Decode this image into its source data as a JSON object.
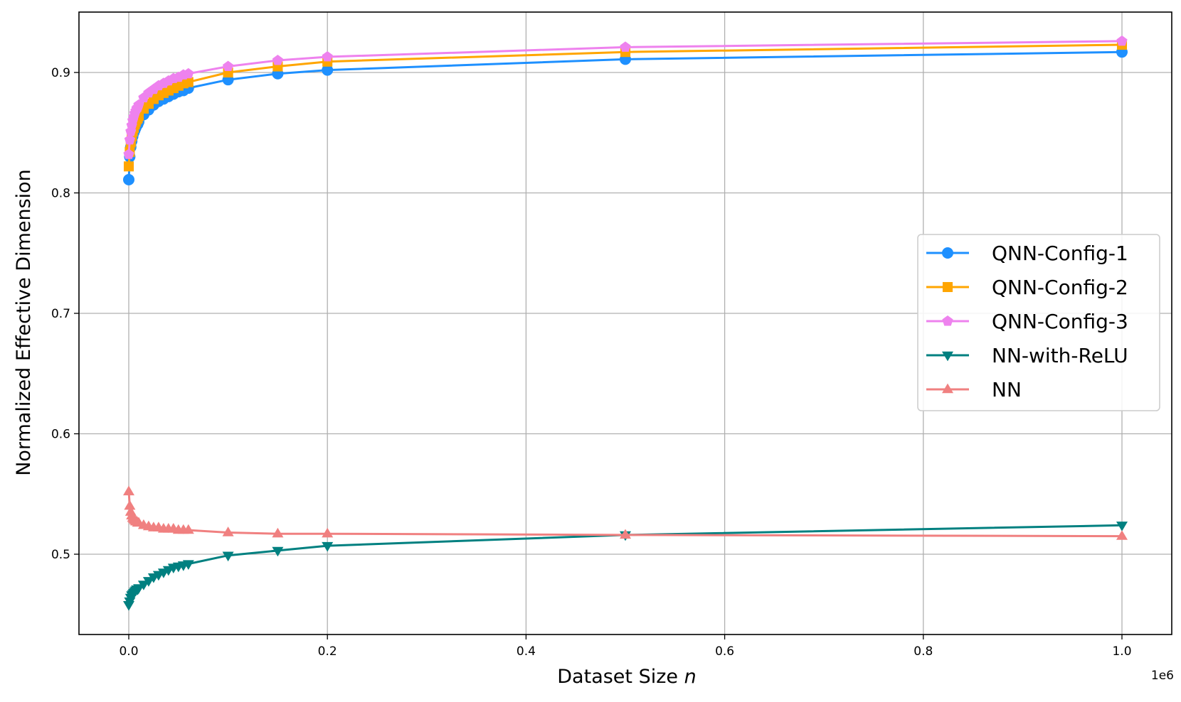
{
  "chart_data": {
    "type": "line",
    "title": "",
    "xlabel": "Dataset Size n",
    "xlabel_main": "Dataset Size ",
    "xlabel_var": "n",
    "ylabel": "Normalized Effective Dimension",
    "x_offset_label": "1e6",
    "xlim": [
      -0.05,
      1.05
    ],
    "ylim": [
      0.432,
      0.95
    ],
    "xticks": [
      0.0,
      0.2,
      0.4,
      0.6,
      0.8,
      1.0
    ],
    "xtick_labels": [
      "0.0",
      "0.2",
      "0.4",
      "0.6",
      "0.8",
      "1.0"
    ],
    "yticks": [
      0.5,
      0.6,
      0.7,
      0.8,
      0.9
    ],
    "ytick_labels": [
      "0.5",
      "0.6",
      "0.7",
      "0.8",
      "0.9"
    ],
    "grid": true,
    "legend_position": "center-right",
    "x": [
      0.0,
      0.001,
      0.002,
      0.003,
      0.004,
      0.005,
      0.006,
      0.007,
      0.008,
      0.009,
      0.01,
      0.015,
      0.02,
      0.025,
      0.03,
      0.035,
      0.04,
      0.045,
      0.05,
      0.055,
      0.06,
      0.1,
      0.15,
      0.2,
      0.5,
      1.0
    ],
    "series": [
      {
        "name": "QNN-Config-1",
        "color": "#1e90ff",
        "marker": "circle",
        "values": [
          0.811,
          0.83,
          0.838,
          0.843,
          0.847,
          0.85,
          0.852,
          0.854,
          0.856,
          0.857,
          0.859,
          0.865,
          0.869,
          0.873,
          0.876,
          0.878,
          0.88,
          0.882,
          0.884,
          0.885,
          0.887,
          0.894,
          0.899,
          0.902,
          0.911,
          0.917
        ]
      },
      {
        "name": "QNN-Config-2",
        "color": "#ffa500",
        "marker": "square",
        "values": [
          0.822,
          0.834,
          0.842,
          0.847,
          0.851,
          0.854,
          0.857,
          0.859,
          0.861,
          0.862,
          0.864,
          0.87,
          0.874,
          0.878,
          0.881,
          0.883,
          0.885,
          0.887,
          0.889,
          0.891,
          0.892,
          0.9,
          0.905,
          0.909,
          0.917,
          0.923
        ]
      },
      {
        "name": "QNN-Config-3",
        "color": "#ee82ee",
        "marker": "pentagon",
        "values": [
          0.832,
          0.844,
          0.851,
          0.856,
          0.86,
          0.863,
          0.866,
          0.868,
          0.87,
          0.871,
          0.873,
          0.879,
          0.883,
          0.886,
          0.889,
          0.891,
          0.893,
          0.895,
          0.896,
          0.898,
          0.899,
          0.905,
          0.91,
          0.913,
          0.921,
          0.926
        ]
      },
      {
        "name": "NN-with-ReLU",
        "color": "#008080",
        "marker": "triangle-down",
        "values": [
          0.458,
          0.461,
          0.464,
          0.466,
          0.467,
          0.468,
          0.469,
          0.47,
          0.471,
          0.471,
          0.472,
          0.475,
          0.478,
          0.481,
          0.483,
          0.485,
          0.487,
          0.489,
          0.49,
          0.491,
          0.492,
          0.499,
          0.503,
          0.507,
          0.516,
          0.524
        ]
      },
      {
        "name": "NN",
        "color": "#f08080",
        "marker": "triangle-up",
        "values": [
          0.552,
          0.54,
          0.535,
          0.532,
          0.53,
          0.529,
          0.528,
          0.527,
          0.527,
          0.526,
          0.526,
          0.524,
          0.523,
          0.522,
          0.522,
          0.521,
          0.521,
          0.521,
          0.52,
          0.52,
          0.52,
          0.518,
          0.517,
          0.517,
          0.516,
          0.515
        ]
      }
    ]
  }
}
